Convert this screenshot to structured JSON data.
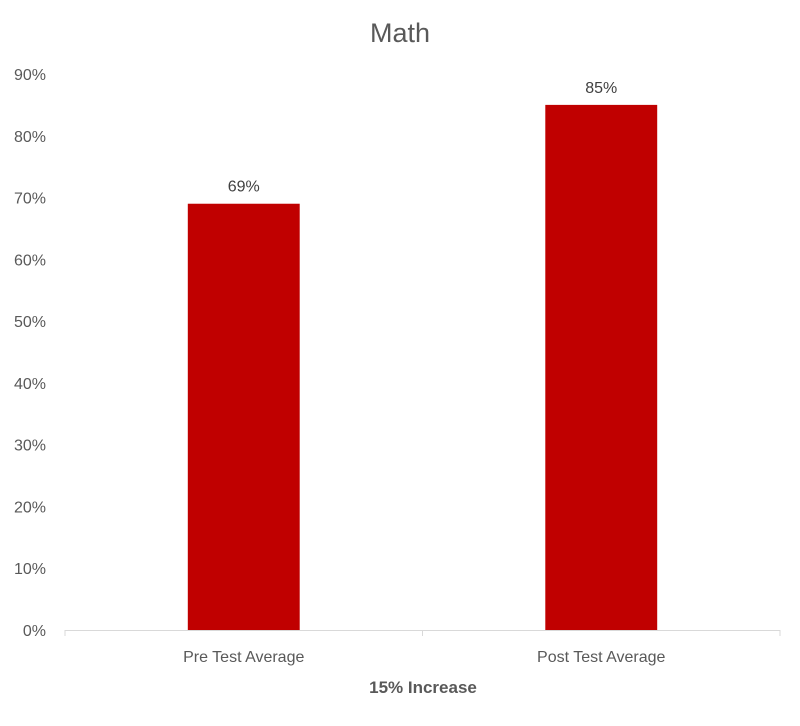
{
  "chart_data": {
    "type": "bar",
    "title": "Math",
    "xlabel": "15% Increase",
    "ylabel": "",
    "categories": [
      "Pre Test Average",
      "Post Test Average"
    ],
    "values": [
      0.69,
      0.85
    ],
    "data_labels": [
      "69%",
      "85%"
    ],
    "ylim": [
      0,
      0.9
    ],
    "yticks": [
      0,
      0.1,
      0.2,
      0.3,
      0.4,
      0.5,
      0.6,
      0.7,
      0.8,
      0.9
    ],
    "ytick_labels": [
      "0%",
      "10%",
      "20%",
      "30%",
      "40%",
      "50%",
      "60%",
      "70%",
      "80%",
      "90%"
    ],
    "grid": false,
    "legend": "none",
    "bar_color": "#C00000"
  }
}
